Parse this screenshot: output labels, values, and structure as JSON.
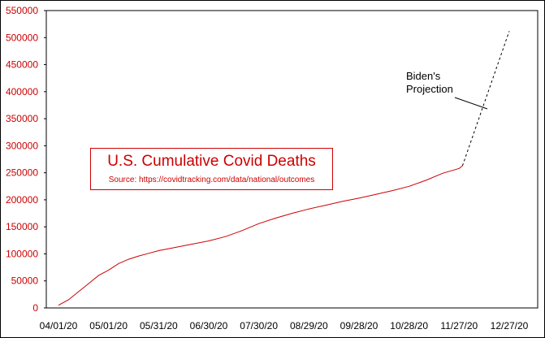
{
  "chart_data": {
    "type": "line",
    "title": "U.S. Cumulative Covid Deaths",
    "subtitle": "Source: https://covidtracking.com/data/national/outcomes",
    "x_tick_labels": [
      "04/01/20",
      "05/01/20",
      "05/31/20",
      "06/30/20",
      "07/30/20",
      "08/29/20",
      "09/28/20",
      "10/28/20",
      "11/27/20",
      "12/27/20"
    ],
    "y_tick_labels": [
      "0",
      "50000",
      "100000",
      "150000",
      "200000",
      "250000",
      "300000",
      "350000",
      "400000",
      "450000",
      "500000",
      "550000"
    ],
    "ylim": [
      0,
      550000
    ],
    "x_days_range": [
      0,
      270
    ],
    "grid": false,
    "series": [
      {
        "name": "",
        "color": "#cc0000",
        "style": "solid",
        "x": [
          0,
          6,
          12,
          18,
          24,
          30,
          36,
          42,
          48,
          54,
          60,
          70,
          80,
          90,
          100,
          110,
          120,
          130,
          140,
          150,
          160,
          170,
          180,
          190,
          200,
          210,
          220,
          230,
          240,
          242
        ],
        "y": [
          5000,
          15000,
          30000,
          45000,
          60000,
          70000,
          82000,
          90000,
          96000,
          101000,
          106000,
          112000,
          118000,
          124000,
          132000,
          143000,
          156000,
          166000,
          175000,
          183000,
          190000,
          197000,
          203000,
          210000,
          217000,
          225000,
          236000,
          249000,
          258000,
          263000
        ]
      },
      {
        "name": "Biden's Projection",
        "color": "#000000",
        "style": "dashed",
        "x": [
          242,
          270
        ],
        "y": [
          263000,
          512000
        ]
      }
    ],
    "annotations": [
      {
        "line1": "Biden's",
        "line2": "Projection"
      }
    ]
  }
}
